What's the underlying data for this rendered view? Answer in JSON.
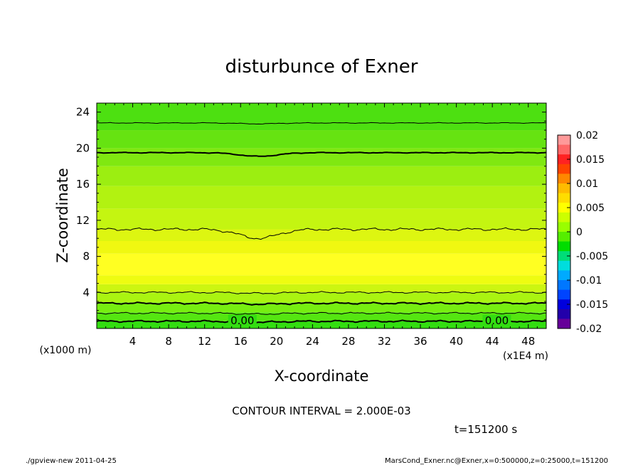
{
  "chart_data": {
    "type": "heatmap",
    "title": "disturbunce of Exner",
    "xlabel": "X-coordinate",
    "ylabel": "Z-coordinate",
    "x_unit_label": "(x1E4 m)",
    "y_unit_label": "(x1000 m)",
    "x_ticks": [
      "4",
      "8",
      "12",
      "16",
      "20",
      "24",
      "28",
      "32",
      "36",
      "40",
      "44",
      "48"
    ],
    "y_ticks": [
      "4",
      "8",
      "12",
      "16",
      "20",
      "24"
    ],
    "xlim": [
      0,
      50
    ],
    "ylim": [
      0,
      25
    ],
    "colorbar": {
      "ticks": [
        "0.02",
        "0.015",
        "0.01",
        "0.005",
        "0",
        "-0.005",
        "-0.01",
        "-0.015",
        "-0.02"
      ],
      "range": [
        -0.02,
        0.02
      ],
      "colors": [
        "#ff9999",
        "#ff6666",
        "#ff2222",
        "#ff4400",
        "#ff8800",
        "#ffbb00",
        "#ffdd00",
        "#ffff00",
        "#ccff00",
        "#99ff00",
        "#55ee00",
        "#00dd00",
        "#00dd77",
        "#00dddd",
        "#00aaff",
        "#0077ff",
        "#0044ff",
        "#0000dd",
        "#2200aa",
        "#660099"
      ]
    },
    "bands": [
      {
        "z0": 0,
        "z1": 0.8,
        "color": "#33dd11"
      },
      {
        "z0": 0.8,
        "z1": 1.8,
        "color": "#55e611"
      },
      {
        "z0": 1.8,
        "z1": 2.9,
        "color": "#77ee11"
      },
      {
        "z0": 2.9,
        "z1": 4.0,
        "color": "#aaf411"
      },
      {
        "z0": 4.0,
        "z1": 4.9,
        "color": "#ccf611"
      },
      {
        "z0": 4.9,
        "z1": 5.9,
        "color": "#eefc11"
      },
      {
        "z0": 5.9,
        "z1": 8.3,
        "color": "#ffff22"
      },
      {
        "z0": 8.3,
        "z1": 9.7,
        "color": "#f0f811"
      },
      {
        "z0": 9.7,
        "z1": 11.0,
        "color": "#ddf611"
      },
      {
        "z0": 11.0,
        "z1": 13.3,
        "color": "#c4f511"
      },
      {
        "z0": 13.3,
        "z1": 15.8,
        "color": "#b2f211"
      },
      {
        "z0": 15.8,
        "z1": 18.0,
        "color": "#9cee11"
      },
      {
        "z0": 18.0,
        "z1": 20.0,
        "color": "#80e811"
      },
      {
        "z0": 20.0,
        "z1": 22.0,
        "color": "#66e311"
      },
      {
        "z0": 22.0,
        "z1": 25.0,
        "color": "#4de011"
      }
    ],
    "contours": [
      {
        "level_z": 0.8,
        "thick": true,
        "label": "0.00"
      },
      {
        "level_z": 1.7,
        "thick": false,
        "label": ""
      },
      {
        "level_z": 2.8,
        "thick": true,
        "label": ""
      },
      {
        "level_z": 4.0,
        "thick": false,
        "label": ""
      },
      {
        "level_z": 11.0,
        "thick": false,
        "label": ""
      },
      {
        "level_z": 19.5,
        "thick": true,
        "label": ""
      },
      {
        "level_z": 22.8,
        "thick": false,
        "label": ""
      }
    ],
    "contour_interval_text": "CONTOUR INTERVAL = 2.000E-03",
    "time_text": "t=151200 s"
  },
  "footer": {
    "left": "./gpview-new   2011-04-25",
    "right": "MarsCond_Exner.nc@Exner,x=0:500000,z=0:25000,t=151200"
  }
}
